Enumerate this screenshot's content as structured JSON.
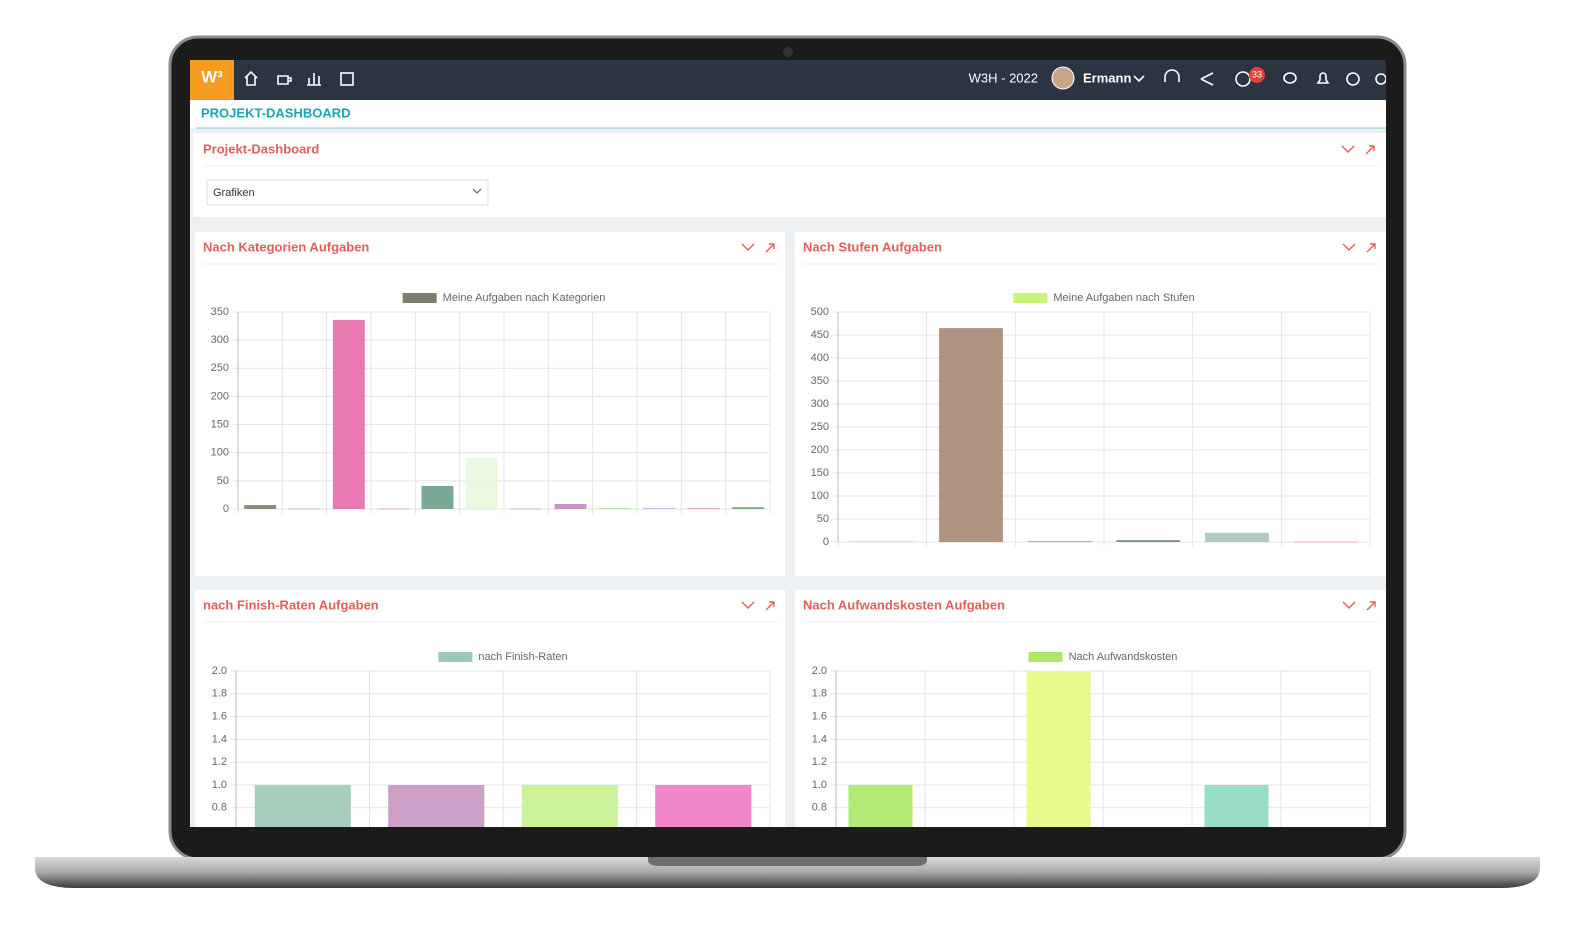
{
  "header": {
    "brand": "W³",
    "project": "W3H - 2022",
    "user": "Ermann",
    "notifications": 33,
    "page_title": "PROJEKT-DASHBOARD"
  },
  "filter_panel": {
    "title": "Projekt-Dashboard",
    "select": "Grafiken"
  },
  "chart_data": [
    {
      "type": "bar",
      "title": "Nach Kategorien Aufgaben",
      "categories": [
        null,
        null,
        null,
        null,
        null,
        null,
        null,
        null,
        null,
        null,
        null,
        null
      ],
      "series": [
        {
          "name": "Meine Aufgaben nach Kategorien",
          "color": "#7b7f6d",
          "colors": [
            "#7b7f6d",
            "#b7b7b7",
            "#e56aa9",
            "#e8a0c4",
            "#6a9e8a",
            "#e6f8dc",
            "#b9b9b9",
            "#c08bc0",
            "#b6e0a6",
            "#c8b8e0",
            "#ec9ac2",
            "#5c9e6a"
          ],
          "values": [
            7,
            1,
            336,
            1,
            41,
            91,
            1,
            9,
            2,
            2,
            2,
            3
          ]
        }
      ],
      "ylim": [
        0,
        350
      ],
      "yticks": [
        0,
        50,
        100,
        150,
        200,
        250,
        300,
        350
      ],
      "grid": true
    },
    {
      "type": "bar",
      "title": "Nach Stufen Aufgaben",
      "categories": [
        null,
        null,
        null,
        null,
        null,
        null
      ],
      "series": [
        {
          "name": "Meine Aufgaben nach Stufen",
          "color": "#c6f57a",
          "colors": [
            "#c6f57a",
            "#a58776",
            "#7fb3a8",
            "#6b8a78",
            "#a9c4b7",
            "#e8a3c6"
          ],
          "values": [
            2,
            465,
            2,
            4,
            20,
            1
          ]
        }
      ],
      "ylim": [
        0,
        500
      ],
      "yticks": [
        0,
        50,
        100,
        150,
        200,
        250,
        300,
        350,
        400,
        450,
        500
      ],
      "grid": true
    },
    {
      "type": "bar",
      "title": "nach Finish-Raten Aufgaben",
      "categories": [
        null,
        null,
        null,
        null
      ],
      "series": [
        {
          "name": "nach Finish-Raten",
          "color": "#9dc8b5",
          "colors": [
            "#9dc8b5",
            "#c595c0",
            "#c5ef8e",
            "#f07ac3"
          ],
          "values": [
            1,
            1,
            1,
            1
          ]
        }
      ],
      "ylim": [
        0,
        2
      ],
      "yticks": [
        0.8,
        {
          "value": 1,
          "label": "1.0"
        },
        1.2,
        1.4,
        1.6,
        1.8,
        {
          "value": 2,
          "label": "2.0"
        }
      ],
      "grid": true
    },
    {
      "type": "bar",
      "title": "Nach Aufwandskosten Aufgaben",
      "categories": [
        null,
        null,
        null,
        null,
        null,
        null
      ],
      "series": [
        {
          "name": "Nach Aufwandskosten",
          "color": "#abe866",
          "colors": [
            "#abe866",
            "#c9c9c9",
            "#e6fb7e",
            "#c9c9c9",
            "#8fd9bf",
            "#c9c9c9"
          ],
          "values": [
            1,
            0,
            2,
            0,
            1,
            0
          ]
        }
      ],
      "ylim": [
        0,
        2
      ],
      "yticks": [
        0.8,
        {
          "value": 1,
          "label": "1.0"
        },
        1.2,
        1.4,
        1.6,
        1.8,
        {
          "value": 2,
          "label": "2.0"
        }
      ],
      "grid": true
    }
  ]
}
